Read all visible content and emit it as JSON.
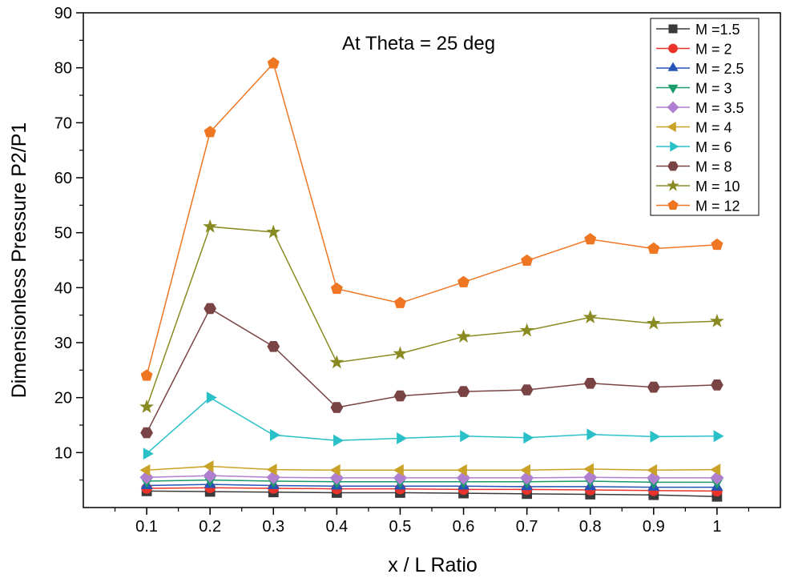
{
  "chart_data": {
    "type": "line",
    "title": "",
    "annotation": "At Theta = 25 deg",
    "xlabel": "x / L Ratio",
    "ylabel": "Dimensionless Pressure  P2/P1",
    "xlim": [
      0.0,
      1.1
    ],
    "ylim": [
      0,
      90
    ],
    "x": [
      0.1,
      0.2,
      0.3,
      0.4,
      0.5,
      0.6,
      0.7,
      0.8,
      0.9,
      1.0
    ],
    "x_tick_labels": [
      "0.1",
      "0.2",
      "0.3",
      "0.4",
      "0.5",
      "0.6",
      "0.7",
      "0.8",
      "0.9",
      "1"
    ],
    "y_ticks": [
      10,
      20,
      30,
      40,
      50,
      60,
      70,
      80,
      90
    ],
    "y_tick_labels": [
      "10",
      "20",
      "30",
      "40",
      "50",
      "60",
      "70",
      "80",
      "90"
    ],
    "legend_position": "top-right",
    "series": [
      {
        "name": "M =1.5",
        "marker": "square",
        "color": "#3a3a3a",
        "values": [
          3.0,
          2.9,
          2.8,
          2.7,
          2.7,
          2.6,
          2.5,
          2.4,
          2.3,
          2.0
        ]
      },
      {
        "name": "M = 2",
        "marker": "circle",
        "color": "#e8322a",
        "values": [
          3.5,
          3.6,
          3.5,
          3.4,
          3.4,
          3.3,
          3.3,
          3.2,
          3.1,
          3.0
        ]
      },
      {
        "name": "M = 2.5",
        "marker": "triangle-up",
        "color": "#2454b8",
        "values": [
          4.0,
          4.2,
          4.0,
          3.9,
          3.9,
          3.9,
          3.8,
          3.8,
          3.7,
          3.7
        ]
      },
      {
        "name": "M = 3",
        "marker": "triangle-down",
        "color": "#1a9a6a",
        "values": [
          4.8,
          5.0,
          4.8,
          4.7,
          4.7,
          4.7,
          4.7,
          4.8,
          4.6,
          4.6
        ]
      },
      {
        "name": "M = 3.5",
        "marker": "diamond",
        "color": "#b07fd0",
        "values": [
          5.5,
          5.8,
          5.5,
          5.4,
          5.4,
          5.4,
          5.4,
          5.5,
          5.4,
          5.4
        ]
      },
      {
        "name": "M = 4",
        "marker": "triangle-left",
        "color": "#c9a227",
        "values": [
          6.8,
          7.5,
          6.9,
          6.8,
          6.8,
          6.8,
          6.8,
          7.0,
          6.8,
          6.9
        ]
      },
      {
        "name": "M = 6",
        "marker": "triangle-right",
        "color": "#29c0c8",
        "values": [
          9.8,
          20.0,
          13.2,
          12.2,
          12.6,
          13.0,
          12.7,
          13.3,
          12.9,
          13.0
        ]
      },
      {
        "name": "M = 8",
        "marker": "hexagon",
        "color": "#7a4444",
        "values": [
          13.6,
          36.2,
          29.3,
          18.2,
          20.3,
          21.1,
          21.4,
          22.6,
          21.9,
          22.3
        ]
      },
      {
        "name": "M = 10",
        "marker": "star",
        "color": "#8a8a22",
        "values": [
          18.3,
          51.1,
          50.1,
          26.4,
          28.0,
          31.1,
          32.2,
          34.6,
          33.5,
          33.9
        ]
      },
      {
        "name": "M = 12",
        "marker": "pentagon",
        "color": "#ef7622",
        "values": [
          24.0,
          68.3,
          80.8,
          39.8,
          37.2,
          41.0,
          44.9,
          48.8,
          47.1,
          47.8
        ]
      }
    ]
  }
}
